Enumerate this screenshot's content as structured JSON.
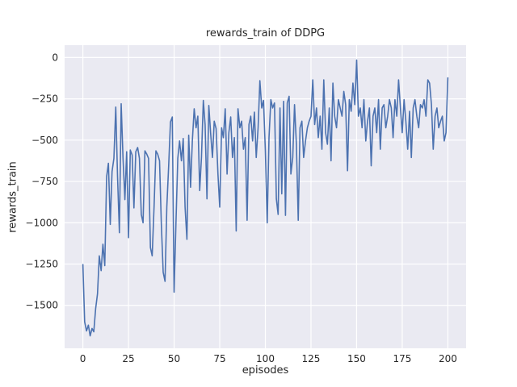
{
  "figure": {
    "title": "rewards_train of DDPG",
    "xlabel": "episodes",
    "ylabel": "rewards_train"
  },
  "chart_data": {
    "type": "line",
    "title": "rewards_train of DDPG",
    "xlabel": "episodes",
    "ylabel": "rewards_train",
    "series": [
      {
        "name": "rewards_train",
        "x_is_index": true,
        "values": [
          -1250,
          -1600,
          -1655,
          -1620,
          -1685,
          -1640,
          -1660,
          -1520,
          -1430,
          -1200,
          -1290,
          -1130,
          -1260,
          -720,
          -640,
          -1010,
          -690,
          -610,
          -300,
          -720,
          -1060,
          -280,
          -610,
          -860,
          -570,
          -1090,
          -560,
          -590,
          -910,
          -570,
          -545,
          -610,
          -950,
          -1000,
          -565,
          -585,
          -610,
          -1150,
          -1200,
          -905,
          -565,
          -585,
          -625,
          -1005,
          -1300,
          -1355,
          -905,
          -655,
          -390,
          -360,
          -1420,
          -1005,
          -610,
          -505,
          -625,
          -490,
          -905,
          -1100,
          -470,
          -785,
          -505,
          -310,
          -425,
          -355,
          -805,
          -605,
          -260,
          -405,
          -855,
          -290,
          -455,
          -605,
          -385,
          -430,
          -705,
          -905,
          -425,
          -485,
          -310,
          -705,
          -455,
          -360,
          -605,
          -485,
          -1050,
          -310,
          -425,
          -385,
          -555,
          -485,
          -985,
          -405,
          -355,
          -505,
          -330,
          -605,
          -425,
          -140,
          -305,
          -260,
          -565,
          -1000,
          -485,
          -255,
          -305,
          -275,
          -855,
          -950,
          -305,
          -825,
          -265,
          -955,
          -275,
          -235,
          -705,
          -605,
          -285,
          -525,
          -985,
          -425,
          -385,
          -605,
          -505,
          -425,
          -385,
          -355,
          -135,
          -405,
          -305,
          -485,
          -355,
          -555,
          -135,
          -455,
          -525,
          -305,
          -625,
          -155,
          -355,
          -425,
          -255,
          -305,
          -355,
          -205,
          -285,
          -685,
          -255,
          -325,
          -155,
          -285,
          -15,
          -355,
          -305,
          -425,
          -255,
          -505,
          -385,
          -305,
          -655,
          -355,
          -305,
          -455,
          -255,
          -555,
          -305,
          -285,
          -425,
          -355,
          -255,
          -305,
          -485,
          -255,
          -355,
          -135,
          -305,
          -455,
          -255,
          -385,
          -555,
          -325,
          -605,
          -305,
          -255,
          -355,
          -425,
          -285,
          -305,
          -255,
          -355,
          -135,
          -155,
          -285,
          -555,
          -355,
          -305,
          -425,
          -385,
          -355,
          -505,
          -455,
          -120
        ]
      }
    ],
    "xlim": [
      -10,
      210
    ],
    "ylim": [
      -1760,
      75
    ],
    "xticks": [
      0,
      25,
      50,
      75,
      100,
      125,
      150,
      175,
      200
    ],
    "xtick_labels": [
      "0",
      "25",
      "50",
      "75",
      "100",
      "125",
      "150",
      "175",
      "200"
    ],
    "yticks": [
      0,
      -250,
      -500,
      -750,
      -1000,
      -1250,
      -1500
    ],
    "ytick_labels": [
      "0",
      "−250",
      "−500",
      "−750",
      "−1000",
      "−1250",
      "−1500"
    ],
    "grid": true,
    "legend": "none",
    "colors": {
      "line": "#4c72b0",
      "plot_background": "#eaeaf2",
      "grid": "#ffffff",
      "text": "#262626",
      "figure_background": "#ffffff"
    }
  }
}
